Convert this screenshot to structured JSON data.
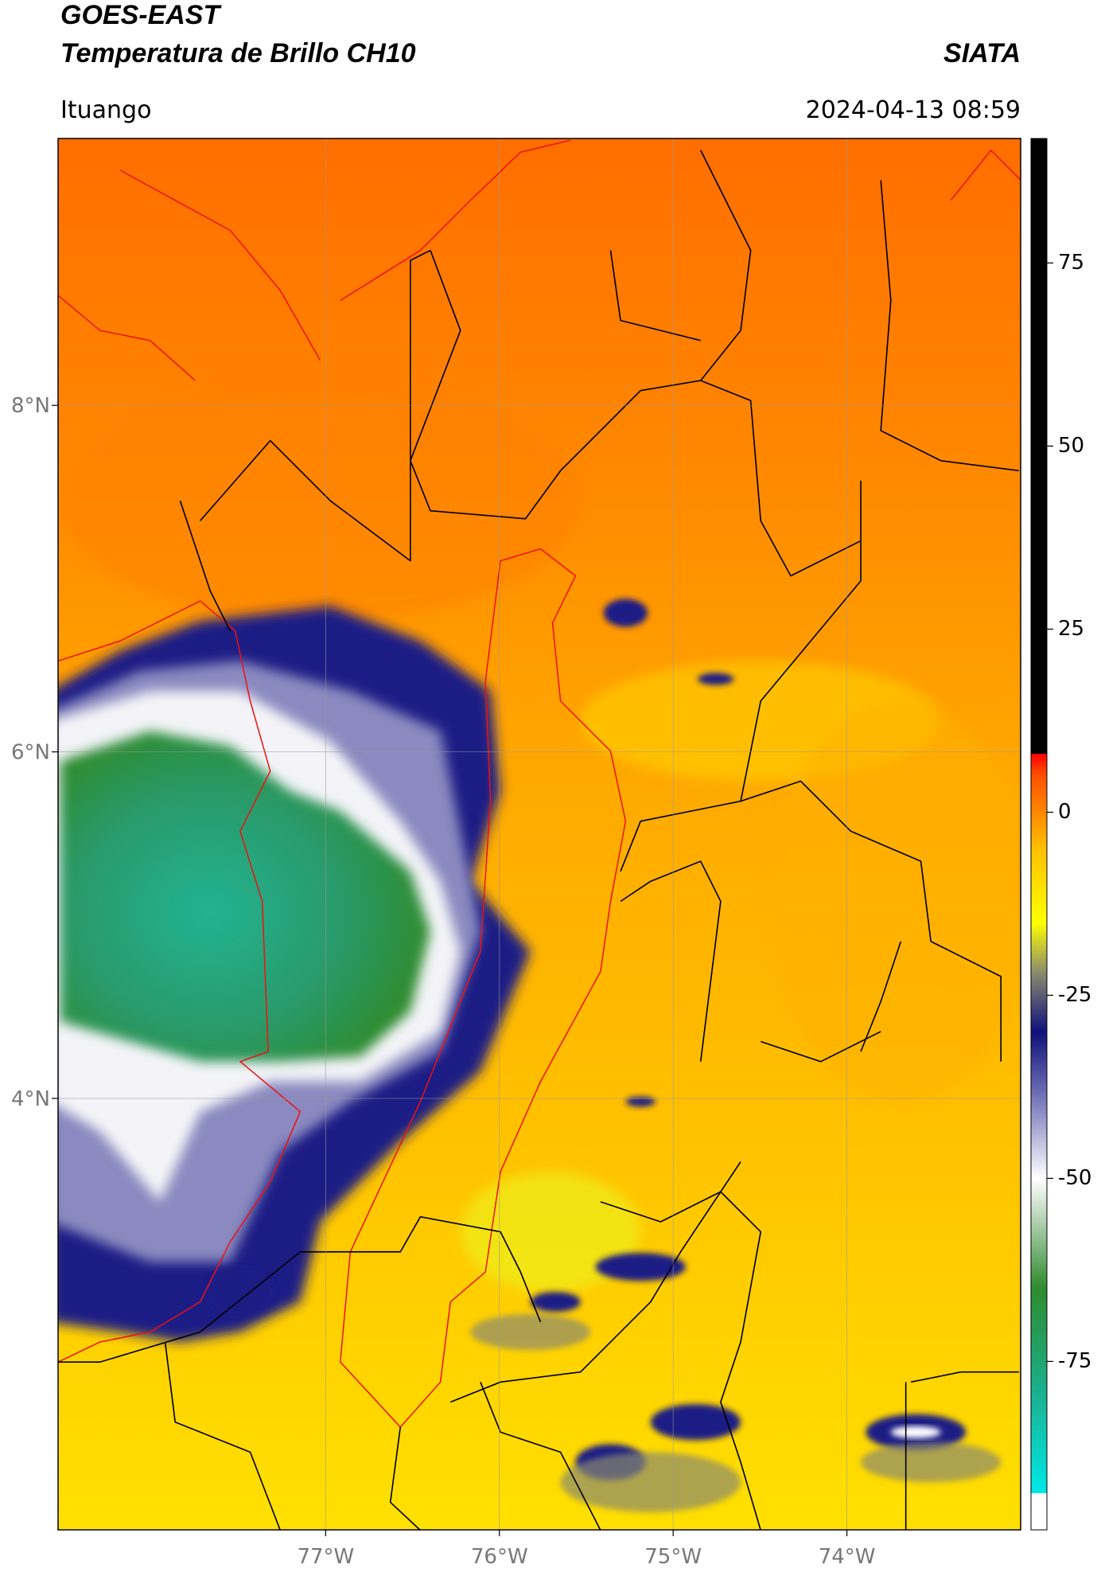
{
  "chart_data": {
    "type": "map",
    "title": "GOES-EAST",
    "subtitle": "Temperatura de Brillo CH10",
    "source": "SIATA",
    "location": "Ituango",
    "datetime": "2024-04-13 08:59",
    "xlim": [
      -78.54,
      -73.0
    ],
    "ylim": [
      1.51,
      9.54
    ],
    "xticks": [
      {
        "value": -77,
        "label": "77°W"
      },
      {
        "value": -76,
        "label": "76°W"
      },
      {
        "value": -75,
        "label": "75°W"
      },
      {
        "value": -74,
        "label": "74°W"
      }
    ],
    "yticks": [
      {
        "value": 8,
        "label": "8°N"
      },
      {
        "value": 6,
        "label": "6°N"
      },
      {
        "value": 4,
        "label": "4°N"
      }
    ],
    "grid": true,
    "colorbar": {
      "lim": [
        -98,
        92
      ],
      "ticks": [
        75,
        50,
        25,
        0,
        -25,
        -50,
        -75
      ],
      "stops": [
        [
          -98,
          "#ffffff"
        ],
        [
          -93,
          "#ffffff"
        ],
        [
          -93,
          "#00e8e8"
        ],
        [
          -80,
          "#1ab394"
        ],
        [
          -65,
          "#2e8b2e"
        ],
        [
          -56,
          "#b0d0b0"
        ],
        [
          -50,
          "#ffffff"
        ],
        [
          -40,
          "#8080c0"
        ],
        [
          -30,
          "#10107a"
        ],
        [
          -22,
          "#8a8a70"
        ],
        [
          -15,
          "#ffff00"
        ],
        [
          -5,
          "#ffc000"
        ],
        [
          5,
          "#ff5000"
        ],
        [
          8,
          "#ff0000"
        ],
        [
          8,
          "#000000"
        ],
        [
          92,
          "#000000"
        ]
      ]
    }
  }
}
